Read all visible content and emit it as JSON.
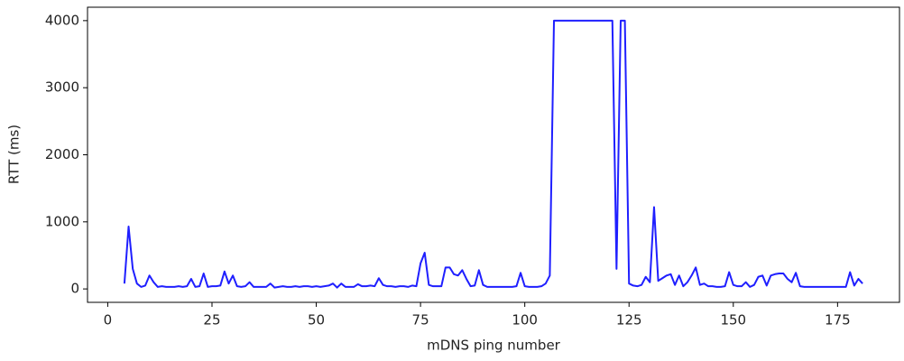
{
  "chart_data": {
    "type": "line",
    "x_label": "mDNS ping number",
    "y_label": "RTT (ms)",
    "x": [
      4,
      5,
      6,
      7,
      8,
      9,
      10,
      11,
      12,
      13,
      14,
      15,
      16,
      17,
      18,
      19,
      20,
      21,
      22,
      23,
      24,
      25,
      26,
      27,
      28,
      29,
      30,
      31,
      32,
      33,
      34,
      35,
      36,
      37,
      38,
      39,
      40,
      41,
      42,
      43,
      44,
      45,
      46,
      47,
      48,
      49,
      50,
      51,
      52,
      53,
      54,
      55,
      56,
      57,
      58,
      59,
      60,
      61,
      62,
      63,
      64,
      65,
      66,
      67,
      68,
      69,
      70,
      71,
      72,
      73,
      74,
      75,
      76,
      77,
      78,
      79,
      80,
      81,
      82,
      83,
      84,
      85,
      86,
      87,
      88,
      89,
      90,
      91,
      92,
      93,
      94,
      95,
      96,
      97,
      98,
      99,
      100,
      101,
      102,
      103,
      104,
      105,
      106,
      107,
      108,
      109,
      110,
      111,
      112,
      113,
      114,
      115,
      116,
      117,
      118,
      119,
      120,
      121,
      122,
      123,
      124,
      125,
      126,
      127,
      128,
      129,
      130,
      131,
      132,
      133,
      134,
      135,
      136,
      137,
      138,
      139,
      140,
      141,
      142,
      143,
      144,
      145,
      146,
      147,
      148,
      149,
      150,
      151,
      152,
      153,
      154,
      155,
      156,
      157,
      158,
      159,
      160,
      161,
      162,
      163,
      164,
      165,
      166,
      167,
      168,
      169,
      170,
      171,
      172,
      173,
      174,
      175,
      176,
      177,
      178,
      179,
      180,
      181
    ],
    "series": [
      {
        "color": "#1f1fff",
        "values": [
          80,
          930,
          300,
          80,
          30,
          50,
          200,
          100,
          30,
          40,
          30,
          30,
          30,
          40,
          30,
          40,
          150,
          30,
          40,
          230,
          30,
          40,
          40,
          50,
          260,
          80,
          200,
          40,
          30,
          40,
          100,
          30,
          30,
          30,
          30,
          80,
          20,
          30,
          40,
          30,
          30,
          40,
          30,
          40,
          40,
          30,
          40,
          30,
          40,
          50,
          80,
          20,
          80,
          30,
          30,
          30,
          70,
          40,
          40,
          50,
          40,
          160,
          60,
          40,
          40,
          30,
          40,
          40,
          30,
          50,
          40,
          380,
          540,
          60,
          40,
          40,
          40,
          320,
          320,
          220,
          200,
          280,
          150,
          40,
          50,
          280,
          60,
          30,
          30,
          30,
          30,
          30,
          30,
          30,
          40,
          240,
          40,
          30,
          30,
          30,
          40,
          80,
          200,
          4000,
          4000,
          4000,
          4000,
          4000,
          4000,
          4000,
          4000,
          4000,
          4000,
          4000,
          4000,
          4000,
          4000,
          4000,
          300,
          4000,
          4000,
          80,
          50,
          40,
          60,
          180,
          100,
          1220,
          120,
          160,
          200,
          220,
          60,
          200,
          40,
          100,
          200,
          320,
          60,
          80,
          40,
          40,
          30,
          30,
          40,
          250,
          60,
          40,
          40,
          100,
          30,
          60,
          180,
          200,
          50,
          200,
          220,
          230,
          230,
          150,
          100,
          240,
          40,
          30,
          30,
          30,
          30,
          30,
          30,
          30,
          30,
          30,
          30,
          30,
          250,
          50,
          150,
          80
        ]
      }
    ],
    "xlim": [
      -4.85,
      189.85
    ],
    "ylim": [
      -200,
      4200
    ],
    "xticks": [
      0,
      25,
      50,
      75,
      100,
      125,
      150,
      175
    ],
    "yticks": [
      0,
      1000,
      2000,
      3000,
      4000
    ]
  }
}
